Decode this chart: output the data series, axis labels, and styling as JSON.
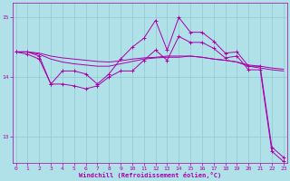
{
  "bg_color": "#b0e0e8",
  "line_color": "#aa00aa",
  "grid_color": "#90c8d0",
  "xlabel": "Windchill (Refroidissement éolien,°C)",
  "xlabel_color": "#aa00aa",
  "xticks": [
    0,
    1,
    2,
    3,
    4,
    5,
    6,
    7,
    8,
    9,
    10,
    11,
    12,
    13,
    14,
    15,
    16,
    17,
    18,
    19,
    20,
    21,
    22,
    23
  ],
  "yticks": [
    13,
    14,
    15
  ],
  "xlim": [
    -0.3,
    23.3
  ],
  "ylim": [
    12.55,
    15.25
  ],
  "line1_x": [
    0,
    1,
    2,
    3,
    4,
    5,
    6,
    7,
    8,
    9,
    10,
    11,
    12,
    13,
    14,
    15,
    16,
    17,
    18,
    19,
    20,
    21,
    22,
    23
  ],
  "line1_y": [
    14.42,
    14.42,
    14.35,
    13.88,
    14.1,
    14.1,
    14.05,
    13.88,
    14.05,
    14.3,
    14.5,
    14.65,
    14.95,
    14.45,
    15.0,
    14.75,
    14.75,
    14.6,
    14.4,
    14.42,
    14.18,
    14.18,
    12.82,
    12.65
  ],
  "line2_x": [
    0,
    1,
    2,
    3,
    4,
    5,
    6,
    7,
    8,
    9,
    10,
    11,
    12,
    13,
    14,
    15,
    16,
    17,
    18,
    19,
    20,
    21,
    22,
    23
  ],
  "line2_y": [
    14.42,
    14.42,
    14.4,
    14.35,
    14.32,
    14.3,
    14.28,
    14.26,
    14.25,
    14.27,
    14.3,
    14.32,
    14.33,
    14.35,
    14.35,
    14.35,
    14.33,
    14.3,
    14.28,
    14.25,
    14.2,
    14.18,
    14.15,
    14.13
  ],
  "line3_x": [
    0,
    1,
    2,
    3,
    4,
    5,
    6,
    7,
    8,
    9,
    10,
    11,
    12,
    13,
    14,
    15,
    16,
    17,
    18,
    19,
    20,
    21,
    22,
    23
  ],
  "line3_y": [
    14.42,
    14.42,
    14.38,
    14.3,
    14.25,
    14.22,
    14.2,
    14.18,
    14.18,
    14.22,
    14.26,
    14.3,
    14.32,
    14.33,
    14.33,
    14.35,
    14.33,
    14.3,
    14.28,
    14.25,
    14.18,
    14.15,
    14.12,
    14.1
  ],
  "line4_x": [
    0,
    1,
    2,
    3,
    4,
    5,
    6,
    7,
    8,
    9,
    10,
    11,
    12,
    13,
    14,
    15,
    16,
    17,
    18,
    19,
    20,
    21,
    22,
    23
  ],
  "line4_y": [
    14.42,
    14.38,
    14.3,
    13.88,
    13.88,
    13.85,
    13.8,
    13.85,
    14.0,
    14.1,
    14.1,
    14.28,
    14.45,
    14.28,
    14.68,
    14.58,
    14.58,
    14.48,
    14.32,
    14.35,
    14.12,
    14.12,
    12.75,
    12.58
  ]
}
